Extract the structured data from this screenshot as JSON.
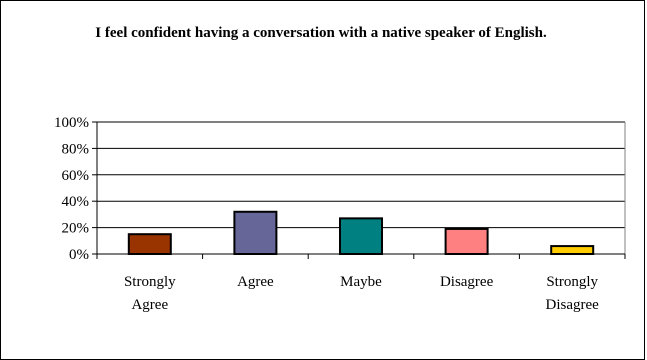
{
  "chart_data": {
    "type": "bar",
    "title": "I feel confident having a conversation with a native speaker of English.",
    "categories": [
      [
        "Strongly",
        "Agree"
      ],
      [
        "Agree"
      ],
      [
        "Maybe"
      ],
      [
        "Disagree"
      ],
      [
        "Strongly",
        "Disagree"
      ]
    ],
    "values": [
      15,
      32,
      27,
      19,
      6
    ],
    "colors": [
      "#993300",
      "#666699",
      "#008080",
      "#FF8080",
      "#FFCC00"
    ],
    "y_ticks": [
      "0%",
      "20%",
      "40%",
      "60%",
      "80%",
      "100%"
    ],
    "ylim": [
      0,
      100
    ],
    "grid": true,
    "legend": "none"
  }
}
